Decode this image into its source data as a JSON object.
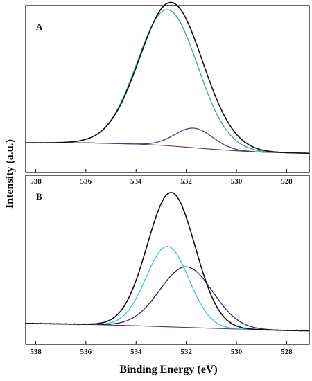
{
  "figure": {
    "xlabel": "Binding Energy (eV)",
    "ylabel": "Intensity (a.u.)"
  },
  "chart_data": [
    {
      "type": "line",
      "panel_label": "A",
      "x_axis": {
        "reversed": true,
        "xlim": [
          538.4,
          527.1
        ],
        "ticks": [
          538,
          536,
          534,
          532,
          530,
          528
        ]
      },
      "ylim": [
        0,
        1
      ],
      "grid": false,
      "series": [
        {
          "role": "background",
          "color": "#5a3a3a",
          "x": [
            538.4,
            536,
            534,
            533,
            532,
            531,
            530,
            529,
            528,
            527.1
          ],
          "y": [
            0.178,
            0.178,
            0.17,
            0.163,
            0.152,
            0.14,
            0.13,
            0.122,
            0.118,
            0.115
          ]
        },
        {
          "role": "fitted-component-1",
          "color": "#2db36b",
          "peak_center": 532.75,
          "peak_height": 0.815,
          "peak_sigma": 1.2
        },
        {
          "role": "fitted-component-2",
          "color": "#3d3f8f",
          "peak_center": 531.7,
          "peak_height": 0.117,
          "peak_sigma": 0.75
        },
        {
          "role": "envelope",
          "color": "#111111",
          "peak_center": 532.6,
          "peak_height": 0.86,
          "peak_sigma": 1.25
        },
        {
          "role": "raw-data",
          "color": "#c2607a",
          "noise_amplitude": 0.004
        }
      ]
    },
    {
      "type": "line",
      "panel_label": "B",
      "x_axis": {
        "reversed": true,
        "xlim": [
          538.4,
          527.1
        ],
        "ticks": [
          538,
          536,
          534,
          532,
          530,
          528
        ]
      },
      "ylim": [
        0,
        1
      ],
      "grid": false,
      "series": [
        {
          "role": "background",
          "color": "#5a3a3a",
          "x": [
            538.4,
            536,
            534,
            533,
            532,
            531,
            530,
            529,
            528,
            527.1
          ],
          "y": [
            0.124,
            0.118,
            0.11,
            0.105,
            0.1,
            0.095,
            0.09,
            0.086,
            0.082,
            0.08
          ]
        },
        {
          "role": "fitted-component-1",
          "color": "#3ac4d4",
          "peak_center": 532.75,
          "peak_height": 0.475,
          "peak_sigma": 0.85
        },
        {
          "role": "fitted-component-2",
          "color": "#262a6e",
          "peak_center": 532.0,
          "peak_height": 0.358,
          "peak_sigma": 1.05
        },
        {
          "role": "envelope",
          "color": "#111111",
          "peak_center": 532.6,
          "peak_height": 0.795,
          "peak_sigma": 0.95
        },
        {
          "role": "raw-data",
          "color": "#c2607a",
          "noise_amplitude": 0.006
        }
      ]
    }
  ]
}
